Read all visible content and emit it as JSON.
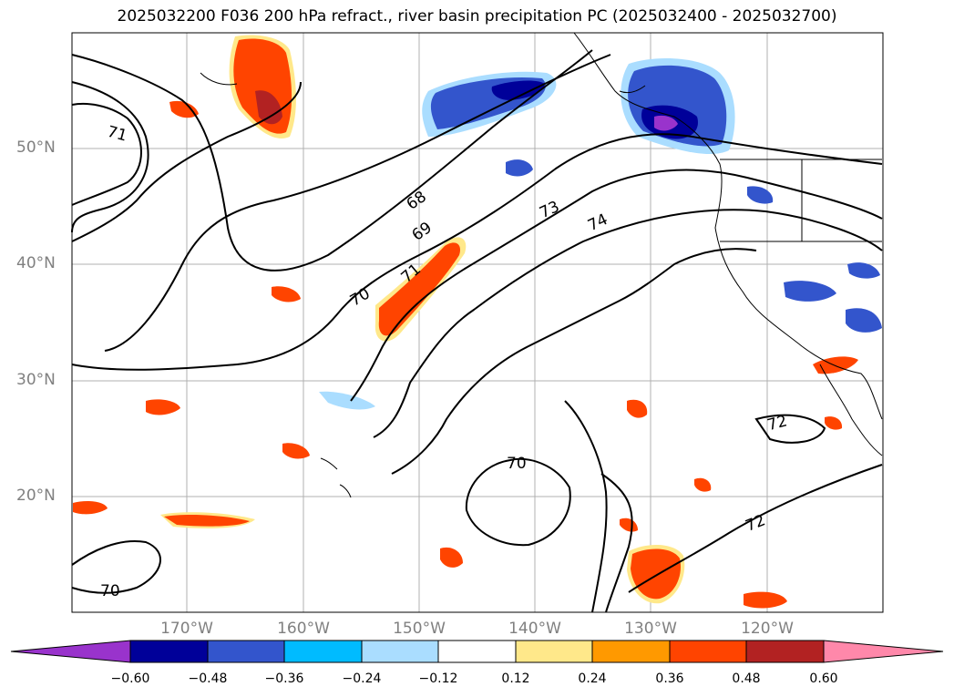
{
  "title": "2025032200 F036 200 hPa refract., river basin precipitation PC (2025032400 - 2025032700)",
  "map": {
    "lat_labels": [
      "50°N",
      "40°N",
      "30°N",
      "20°N"
    ],
    "lon_labels": [
      "170°W",
      "160°W",
      "150°W",
      "140°W",
      "130°W",
      "120°W"
    ],
    "contour_labels": [
      "71",
      "68",
      "69",
      "70",
      "71",
      "73",
      "74",
      "70",
      "72",
      "72",
      "70"
    ],
    "contour_color": "#000000",
    "grid_color": "#b0b0b0",
    "coastline_color": "#000000"
  },
  "colorbar": {
    "colors": [
      "#9933cc",
      "#000099",
      "#3355cc",
      "#00bbff",
      "#aaddff",
      "#ffffff",
      "#ffe88a",
      "#ff9900",
      "#ff4400",
      "#b22222",
      "#ff88aa"
    ],
    "tick_labels": [
      "−0.60",
      "−0.48",
      "−0.36",
      "−0.24",
      "−0.12",
      "0.12",
      "0.24",
      "0.36",
      "0.48",
      "0.60"
    ]
  }
}
